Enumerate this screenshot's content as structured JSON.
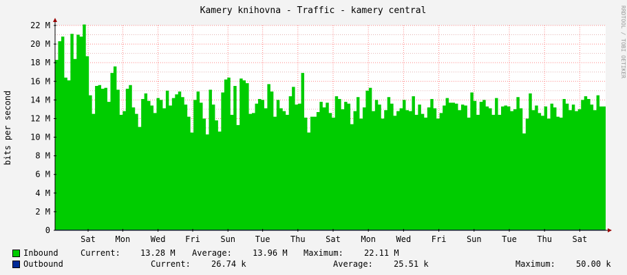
{
  "chart_data": {
    "type": "area",
    "title": "Kamery knihovna - Traffic - kamery central",
    "ylabel": "bits per second",
    "watermark": "RRDTOOL / TOBI OETIKER",
    "ylim": [
      0,
      22000000
    ],
    "y_ticks": [
      {
        "value": 0,
        "label": "0"
      },
      {
        "value": 2000000,
        "label": "2 M"
      },
      {
        "value": 4000000,
        "label": "4 M"
      },
      {
        "value": 6000000,
        "label": "6 M"
      },
      {
        "value": 8000000,
        "label": "8 M"
      },
      {
        "value": 10000000,
        "label": "10 M"
      },
      {
        "value": 12000000,
        "label": "12 M"
      },
      {
        "value": 14000000,
        "label": "14 M"
      },
      {
        "value": 16000000,
        "label": "16 M"
      },
      {
        "value": 18000000,
        "label": "18 M"
      },
      {
        "value": 20000000,
        "label": "20 M"
      },
      {
        "value": 22000000,
        "label": "22 M"
      }
    ],
    "x_ticks": [
      "Sat",
      "Mon",
      "Wed",
      "Fri",
      "Sun",
      "Tue",
      "Thu",
      "Sat",
      "Mon",
      "Wed",
      "Fri",
      "Sun",
      "Tue",
      "Thu",
      "Sat"
    ],
    "x_tick_positions": [
      0.06,
      0.123,
      0.187,
      0.25,
      0.314,
      0.377,
      0.441,
      0.505,
      0.569,
      0.633,
      0.697,
      0.761,
      0.825,
      0.889,
      0.953
    ],
    "colors": {
      "inbound": "#00cc00",
      "outbound": "#002a97",
      "grid_major": "#ff8080",
      "grid_minor": "#e0b0b0",
      "axis": "#000000",
      "arrow": "#990000"
    },
    "series": [
      {
        "name": "Inbound",
        "values": [
          18.3,
          20.3,
          20.8,
          16.4,
          16.1,
          21.1,
          18.4,
          21.0,
          20.8,
          22.1,
          18.7,
          14.5,
          12.5,
          15.5,
          15.6,
          15.2,
          15.3,
          13.8,
          16.9,
          17.6,
          15.1,
          12.4,
          12.8,
          15.2,
          15.6,
          13.2,
          12.5,
          11.1,
          14.1,
          14.7,
          13.9,
          13.4,
          12.6,
          14.2,
          14.0,
          13.1,
          15.0,
          13.4,
          14.2,
          14.6,
          14.9,
          14.3,
          13.5,
          12.2,
          10.5,
          14.0,
          14.9,
          13.7,
          12.0,
          10.3,
          15.1,
          13.5,
          11.8,
          10.6,
          14.8,
          16.2,
          16.4,
          12.4,
          15.5,
          11.3,
          16.3,
          16.1,
          15.8,
          12.5,
          12.6,
          13.6,
          14.1,
          14.0,
          13.1,
          15.7,
          14.9,
          12.2,
          14.0,
          13.1,
          12.8,
          12.4,
          14.4,
          15.4,
          13.5,
          13.6,
          16.9,
          12.1,
          10.5,
          12.2,
          12.2,
          12.7,
          13.8,
          13.2,
          13.7,
          12.6,
          12.1,
          14.4,
          14.1,
          13.0,
          13.8,
          13.6,
          11.4,
          12.8,
          14.3,
          12.0,
          13.2,
          15.0,
          15.3,
          12.8,
          14.0,
          13.5,
          12.0,
          12.9,
          14.3,
          13.6,
          12.3,
          12.8,
          13.1,
          14.0,
          12.9,
          12.8,
          14.4,
          12.4,
          13.5,
          12.5,
          12.1,
          13.2,
          14.1,
          13.1,
          12.0,
          12.6,
          13.4,
          14.2,
          13.7,
          13.7,
          13.6,
          12.9,
          13.5,
          13.4,
          12.1,
          14.8,
          13.9,
          12.4,
          13.8,
          14.0,
          13.3,
          13.1,
          12.4,
          14.2,
          12.4,
          13.3,
          13.4,
          13.3,
          12.8,
          13.0,
          14.3,
          13.1,
          10.4,
          12.0,
          14.7,
          12.9,
          13.4,
          12.6,
          12.3,
          13.3,
          12.0,
          13.6,
          13.2,
          12.2,
          12.1,
          14.1,
          13.6,
          12.9,
          13.5,
          12.8,
          13.0,
          14.0,
          14.4,
          14.1,
          13.5,
          12.9,
          14.5,
          13.3,
          13.3
        ]
      },
      {
        "name": "Outbound",
        "values": [
          0.027
        ]
      }
    ],
    "value_unit": "Mbit/s"
  },
  "legend": {
    "inbound": {
      "label": "Inbound",
      "current_label": "Current:",
      "current": "13.28 M",
      "average_label": "Average:",
      "average": "13.96 M",
      "maximum_label": "Maximum:",
      "maximum": "22.11 M"
    },
    "outbound": {
      "label": "Outbound",
      "current_label": "Current:",
      "current": "26.74 k",
      "average_label": "Average:",
      "average": "25.51 k",
      "maximum_label": "Maximum:",
      "maximum": "50.00 k"
    }
  }
}
